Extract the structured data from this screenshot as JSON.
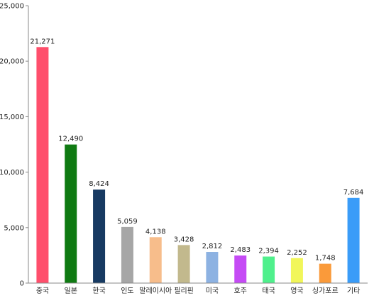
{
  "chart_data": {
    "type": "bar",
    "title": "",
    "xlabel": "",
    "ylabel": "",
    "ylim": [
      0,
      25000
    ],
    "yticks": [
      0,
      5000,
      10000,
      15000,
      20000,
      25000
    ],
    "ytick_labels": [
      "0",
      "5,000",
      "10,000",
      "15,000",
      "20,000",
      "25,000"
    ],
    "grid": false,
    "legend": "none",
    "categories": [
      "중국",
      "일본",
      "한국",
      "인도",
      "말레이시아",
      "필리핀",
      "미국",
      "호주",
      "태국",
      "영국",
      "싱가포르",
      "기타"
    ],
    "values": [
      21271,
      12490,
      8424,
      5059,
      4138,
      3428,
      2812,
      2483,
      2394,
      2252,
      1748,
      7684
    ],
    "value_labels": [
      "21,271",
      "12,490",
      "8,424",
      "5,059",
      "4,138",
      "3,428",
      "2,812",
      "2,483",
      "2,394",
      "2,252",
      "1,748",
      "7,684"
    ],
    "colors": [
      "#ff4f6c",
      "#0f7a12",
      "#173a62",
      "#a6a6a6",
      "#f7bd8b",
      "#c2b98d",
      "#8db2e2",
      "#c54bf5",
      "#4ff08c",
      "#f1f65a",
      "#fa9a3a",
      "#3a9cf8"
    ]
  }
}
